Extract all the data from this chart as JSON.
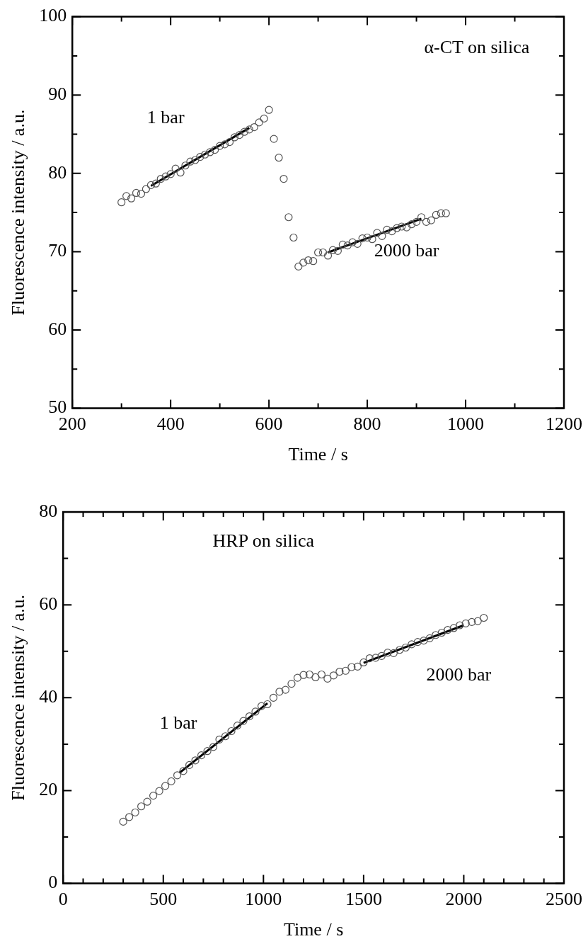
{
  "chart_data": [
    {
      "type": "scatter",
      "title": "α-CT on silica",
      "xlabel": "Time / s",
      "ylabel": "Fluorescence intensity / a.u.",
      "xlim": [
        200,
        1200
      ],
      "xticks": [
        200,
        {
          "value": 300,
          "label": null
        },
        400,
        {
          "value": 500,
          "label": null
        },
        600,
        {
          "value": 700,
          "label": null
        },
        800,
        {
          "value": 900,
          "label": null
        },
        1000,
        {
          "value": 1100,
          "label": null
        },
        1200
      ],
      "ylim": [
        50,
        100
      ],
      "yticks": [
        50,
        {
          "value": 55,
          "label": null
        },
        60,
        {
          "value": 65,
          "label": null
        },
        70,
        {
          "value": 75,
          "label": null
        },
        80,
        {
          "value": 85,
          "label": null
        },
        90,
        {
          "value": 95,
          "label": null
        },
        100
      ],
      "grid": false,
      "legend": false,
      "annotations": [
        "1 bar",
        "2000 bar"
      ],
      "series": [
        {
          "marker": "circle",
          "color": "#555555",
          "x": [
            300,
            310,
            320,
            330,
            340,
            350,
            360,
            370,
            380,
            390,
            400,
            410,
            420,
            430,
            440,
            450,
            460,
            470,
            480,
            490,
            500,
            510,
            520,
            530,
            540,
            550,
            560,
            570,
            580,
            590,
            600,
            610,
            620,
            630,
            640,
            650,
            660,
            670,
            680,
            690,
            700,
            710,
            720,
            730,
            740,
            750,
            760,
            770,
            780,
            790,
            800,
            810,
            820,
            830,
            840,
            850,
            860,
            870,
            880,
            890,
            900,
            910,
            920,
            930,
            940,
            950,
            960
          ],
          "values": [
            76.3,
            77.1,
            76.8,
            77.5,
            77.4,
            78.0,
            78.5,
            78.7,
            79.3,
            79.6,
            79.9,
            80.6,
            80.1,
            81.0,
            81.5,
            81.7,
            82.1,
            82.4,
            82.7,
            83.0,
            83.5,
            83.7,
            84.0,
            84.6,
            84.9,
            85.3,
            85.6,
            85.9,
            86.5,
            87.0,
            88.1,
            84.4,
            82.0,
            79.3,
            74.4,
            71.8,
            68.1,
            68.6,
            68.9,
            68.8,
            69.9,
            69.9,
            69.5,
            70.2,
            70.1,
            70.9,
            70.8,
            71.2,
            71.0,
            71.7,
            71.8,
            71.6,
            72.4,
            72.0,
            72.8,
            72.6,
            73.0,
            73.2,
            73.1,
            73.5,
            73.8,
            74.4,
            73.8,
            74.0,
            74.7,
            74.9,
            74.9
          ]
        },
        {
          "type": "line",
          "marker": "none",
          "line_style": "solid",
          "color": "#000000",
          "x": [
            360,
            560
          ],
          "values": [
            78.4,
            85.8
          ]
        },
        {
          "type": "line",
          "marker": "none",
          "line_style": "solid",
          "color": "#000000",
          "x": [
            720,
            910
          ],
          "values": [
            69.9,
            74.2
          ]
        }
      ]
    },
    {
      "type": "scatter",
      "title": "HRP on silica",
      "xlabel": "Time / s",
      "ylabel": "Fluorescence intensity / a.u.",
      "xlim": [
        0,
        2500
      ],
      "xticks": [
        0,
        {
          "value": 100,
          "label": null
        },
        {
          "value": 200,
          "label": null
        },
        {
          "value": 300,
          "label": null
        },
        {
          "value": 400,
          "label": null
        },
        500,
        {
          "value": 600,
          "label": null
        },
        {
          "value": 700,
          "label": null
        },
        {
          "value": 800,
          "label": null
        },
        {
          "value": 900,
          "label": null
        },
        1000,
        {
          "value": 1100,
          "label": null
        },
        {
          "value": 1200,
          "label": null
        },
        {
          "value": 1300,
          "label": null
        },
        {
          "value": 1400,
          "label": null
        },
        1500,
        {
          "value": 1600,
          "label": null
        },
        {
          "value": 1700,
          "label": null
        },
        {
          "value": 1800,
          "label": null
        },
        {
          "value": 1900,
          "label": null
        },
        2000,
        {
          "value": 2100,
          "label": null
        },
        {
          "value": 2200,
          "label": null
        },
        {
          "value": 2300,
          "label": null
        },
        {
          "value": 2400,
          "label": null
        },
        2500
      ],
      "ylim": [
        0,
        80
      ],
      "yticks": [
        0,
        {
          "value": 10,
          "label": null
        },
        20,
        {
          "value": 30,
          "label": null
        },
        40,
        {
          "value": 50,
          "label": null
        },
        60,
        {
          "value": 70,
          "label": null
        },
        80
      ],
      "grid": false,
      "legend": false,
      "annotations": [
        "1 bar",
        "2000 bar"
      ],
      "series": [
        {
          "marker": "circle",
          "color": "#555555",
          "x": [
            300,
            330,
            360,
            390,
            420,
            450,
            480,
            510,
            540,
            570,
            600,
            630,
            660,
            690,
            720,
            750,
            780,
            810,
            840,
            870,
            900,
            930,
            960,
            990,
            1020,
            1050,
            1080,
            1110,
            1140,
            1170,
            1200,
            1230,
            1260,
            1290,
            1320,
            1350,
            1380,
            1410,
            1440,
            1470,
            1500,
            1530,
            1560,
            1590,
            1620,
            1650,
            1680,
            1710,
            1740,
            1770,
            1800,
            1830,
            1860,
            1890,
            1920,
            1950,
            1980,
            2010,
            2040,
            2070,
            2100
          ],
          "values": [
            13.3,
            14.3,
            15.3,
            16.6,
            17.6,
            18.9,
            19.9,
            21.0,
            22.0,
            23.3,
            24.2,
            25.5,
            26.5,
            27.6,
            28.5,
            29.4,
            31.0,
            31.7,
            32.8,
            34.0,
            35.0,
            36.0,
            37.0,
            38.2,
            38.6,
            40.0,
            41.3,
            41.7,
            43.0,
            44.3,
            44.9,
            45.0,
            44.4,
            45.0,
            44.1,
            44.8,
            45.6,
            45.8,
            46.6,
            46.7,
            47.6,
            48.5,
            48.6,
            49.0,
            49.7,
            49.6,
            50.3,
            50.8,
            51.5,
            52.0,
            52.3,
            52.8,
            53.5,
            54.0,
            54.6,
            55.0,
            55.6,
            56.0,
            56.3,
            56.5,
            57.2
          ]
        },
        {
          "type": "line",
          "marker": "none",
          "line_style": "solid",
          "color": "#000000",
          "x": [
            580,
            1020
          ],
          "values": [
            23.8,
            38.8
          ]
        },
        {
          "type": "line",
          "marker": "none",
          "line_style": "solid",
          "color": "#000000",
          "x": [
            1500,
            2000
          ],
          "values": [
            47.5,
            55.6
          ]
        }
      ]
    }
  ]
}
